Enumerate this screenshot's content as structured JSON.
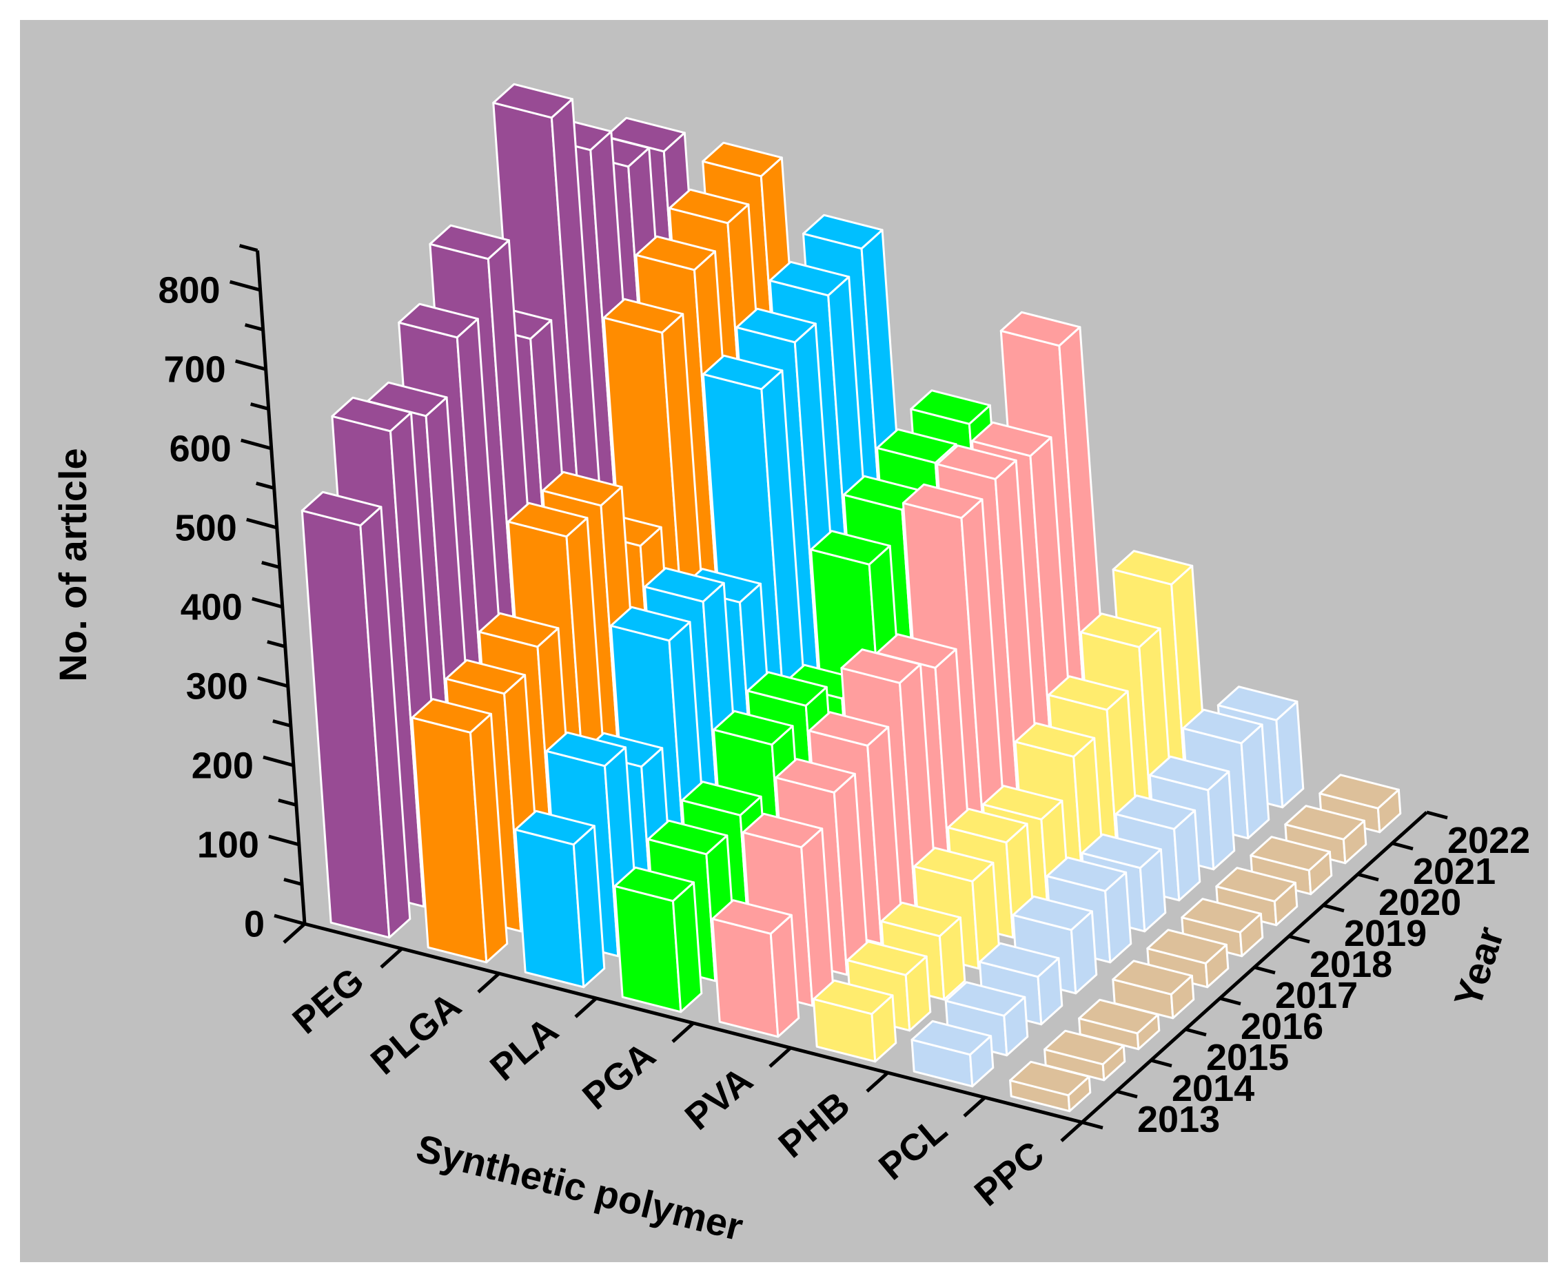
{
  "chart_data": {
    "type": "bar3d",
    "ylabel": "No. of article",
    "xlabel": "Synthetic polymer",
    "zlabel": "Year",
    "categories": [
      "2013",
      "2014",
      "2015",
      "2016",
      "2017",
      "2018",
      "2019",
      "2020",
      "2021",
      "2022"
    ],
    "series": [
      {
        "name": "PEG",
        "color": "#984b94",
        "values": [
          520,
          600,
          580,
          640,
          700,
          560,
          800,
          720,
          660,
          640
        ]
      },
      {
        "name": "PLGA",
        "color": "#ff8c00",
        "values": [
          290,
          300,
          320,
          420,
          420,
          330,
          560,
          600,
          620,
          640
        ]
      },
      {
        "name": "PLA",
        "color": "#00bfff",
        "values": [
          180,
          240,
          200,
          320,
          330,
          290,
          520,
          540,
          560,
          580
        ]
      },
      {
        "name": "PGA",
        "color": "#00ff00",
        "values": [
          140,
          160,
          170,
          220,
          230,
          200,
          330,
          360,
          380,
          390
        ]
      },
      {
        "name": "PVA",
        "color": "#ff9e9e",
        "values": [
          130,
          200,
          230,
          250,
          290,
          270,
          420,
          430,
          420,
          520
        ]
      },
      {
        "name": "PHB",
        "color": "#ffec6e",
        "values": [
          60,
          70,
          80,
          110,
          120,
          110,
          150,
          170,
          210,
          250
        ]
      },
      {
        "name": "PCL",
        "color": "#bfd9f5",
        "values": [
          40,
          50,
          60,
          80,
          90,
          80,
          90,
          100,
          120,
          110
        ]
      },
      {
        "name": "PPC",
        "color": "#ddc09a",
        "values": [
          20,
          20,
          20,
          30,
          30,
          30,
          30,
          30,
          30,
          30
        ]
      }
    ],
    "ylim": [
      0,
      850
    ],
    "yticks": [
      0,
      100,
      200,
      300,
      400,
      500,
      600,
      700,
      800
    ],
    "yminorticks": [
      50,
      150,
      250,
      350,
      450,
      550,
      650,
      750,
      850
    ],
    "background": "#c0c0c0"
  }
}
